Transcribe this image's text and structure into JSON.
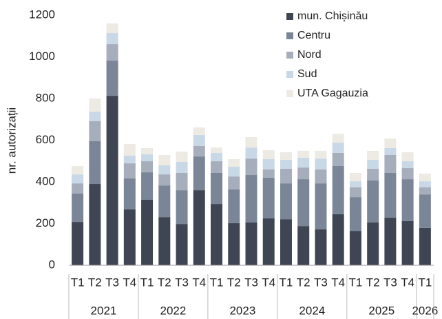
{
  "chart_data": {
    "type": "stacked_bar",
    "y_label": "nr. autorizații",
    "categories": [
      "T1",
      "T2",
      "T3",
      "T4",
      "T1",
      "T2",
      "T3",
      "T4",
      "T1",
      "T2",
      "T3",
      "T4",
      "T1",
      "T2",
      "T3",
      "T4",
      "T1",
      "T2",
      "T3",
      "T4",
      "T1"
    ],
    "category_groups": [
      {
        "label": "2021",
        "count": 4
      },
      {
        "label": "2022",
        "count": 4
      },
      {
        "label": "2023",
        "count": 4
      },
      {
        "label": "2024",
        "count": 4
      },
      {
        "label": "2025",
        "count": 4
      },
      {
        "label": "2026",
        "count": 1
      }
    ],
    "series": [
      {
        "name": "mun. Chișinău",
        "color": "#3f4553",
        "values": [
          208,
          390,
          813,
          268,
          314,
          231,
          198,
          360,
          294,
          202,
          205,
          225,
          221,
          188,
          172,
          245,
          165,
          205,
          228,
          212,
          179
        ]
      },
      {
        "name": "Centru",
        "color": "#7a8697",
        "values": [
          136,
          205,
          169,
          149,
          132,
          152,
          162,
          162,
          149,
          162,
          228,
          195,
          172,
          225,
          221,
          231,
          162,
          202,
          215,
          201,
          161
        ]
      },
      {
        "name": "Nord",
        "color": "#a6adbb",
        "values": [
          49,
          96,
          79,
          72,
          53,
          53,
          83,
          50,
          56,
          62,
          79,
          40,
          70,
          56,
          67,
          63,
          47,
          56,
          86,
          53,
          34
        ]
      },
      {
        "name": "Sud",
        "color": "#c9d8e6",
        "values": [
          43,
          46,
          53,
          37,
          33,
          43,
          53,
          53,
          40,
          47,
          53,
          49,
          43,
          47,
          52,
          49,
          29,
          43,
          33,
          33,
          29
        ]
      },
      {
        "name": "UTA Gagauzia",
        "color": "#eceae2",
        "values": [
          40,
          63,
          46,
          56,
          30,
          50,
          49,
          36,
          26,
          36,
          50,
          43,
          36,
          33,
          37,
          43,
          40,
          43,
          46,
          43,
          37
        ]
      }
    ],
    "ylim": [
      0,
      1200
    ],
    "yticks": [
      0,
      200,
      400,
      600,
      800,
      1000,
      1200
    ],
    "grid": false,
    "legend": "top-right"
  }
}
